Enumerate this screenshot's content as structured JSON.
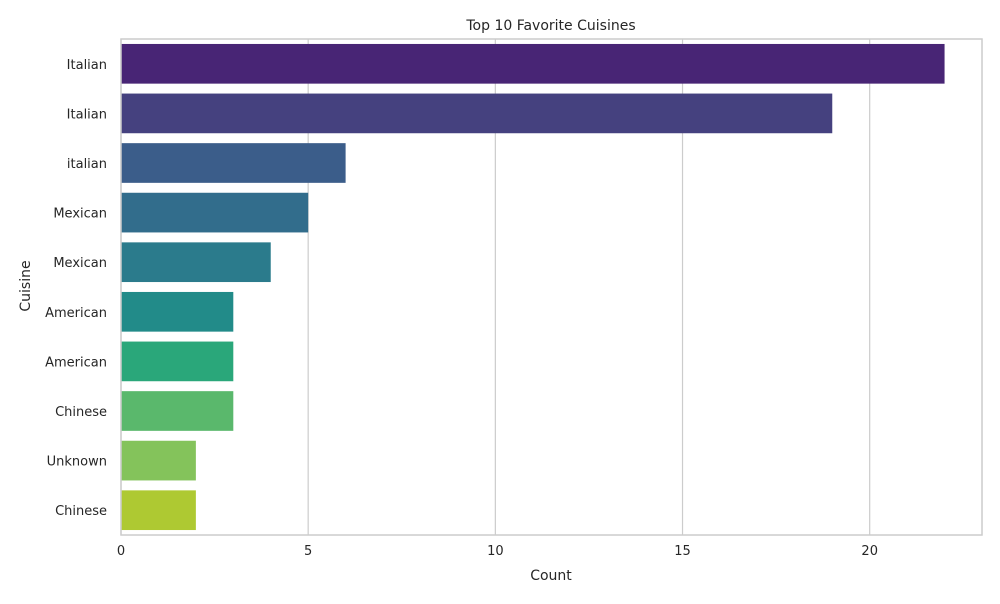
{
  "chart_data": {
    "type": "bar",
    "orientation": "horizontal",
    "title": "Top 10 Favorite Cuisines",
    "xlabel": "Count",
    "ylabel": "Cuisine",
    "categories": [
      "Italian",
      "Italian ",
      "italian",
      "Mexican ",
      "Mexican",
      "American ",
      "American",
      "Chinese ",
      "Unknown",
      "Chinese"
    ],
    "values": [
      22,
      19,
      6,
      5,
      4,
      3,
      3,
      3,
      2,
      2
    ],
    "xlim": [
      0,
      23
    ],
    "xticks": [
      0,
      5,
      10,
      15,
      20
    ],
    "grid": true,
    "palette": "viridis",
    "bar_colors": [
      "#482575",
      "#45417f",
      "#3b5d8a",
      "#326d8c",
      "#2b7b8c",
      "#228b89",
      "#2aa77a",
      "#5ab86c",
      "#84c35b",
      "#aec932"
    ],
    "grid_color": "#cccccc",
    "frame_color": "#cccccc"
  }
}
